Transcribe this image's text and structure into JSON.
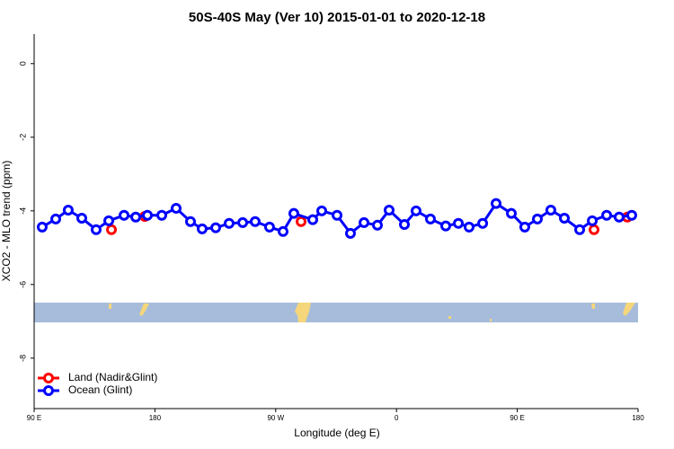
{
  "chart_data": {
    "type": "line",
    "title": "50S-40S May (Ver 10)   2015-01-01 to 2020-12-18",
    "x_label": "Longitude (deg E)",
    "y_label": "XCO2 - MLO trend (ppm)",
    "xlim": [
      90,
      540
    ],
    "ylim": [
      -9.37,
      0.8
    ],
    "xticks": [
      {
        "value": 90,
        "label": "90 E"
      },
      {
        "value": 180,
        "label": "180"
      },
      {
        "value": 270,
        "label": "90 W"
      },
      {
        "value": 360,
        "label": "0"
      },
      {
        "value": 450,
        "label": "90 E"
      },
      {
        "value": 540,
        "label": "180"
      }
    ],
    "yticks": [
      0,
      -2,
      -4,
      -6,
      -8
    ],
    "legend": "bottom-left",
    "series": [
      {
        "name": "Land (Nadir&Glint)",
        "color": "#ff0000",
        "connect": false,
        "x": [
          147.6,
          172.4,
          288.9,
          507.2,
          532.0
        ],
        "values": [
          -4.51,
          -4.15,
          -4.29,
          -4.51,
          -4.17
        ]
      },
      {
        "name": "Ocean (Glint)",
        "color": "#0000ff",
        "connect": true,
        "x": [
          96.0,
          106.1,
          115.4,
          125.5,
          136.2,
          145.6,
          157.0,
          165.7,
          174.4,
          185.1,
          195.8,
          206.5,
          215.2,
          225.3,
          235.3,
          245.4,
          254.7,
          265.4,
          275.5,
          283.5,
          297.6,
          304.3,
          315.7,
          325.7,
          335.8,
          345.8,
          354.5,
          365.9,
          374.6,
          385.3,
          396.7,
          406.1,
          414.1,
          424.2,
          434.2,
          445.6,
          455.6,
          465.0,
          475.0,
          485.1,
          496.5,
          505.9,
          516.6,
          525.9,
          535.3
        ],
        "values": [
          -4.44,
          -4.22,
          -3.98,
          -4.2,
          -4.51,
          -4.27,
          -4.12,
          -4.17,
          -4.12,
          -4.12,
          -3.93,
          -4.29,
          -4.49,
          -4.46,
          -4.34,
          -4.32,
          -4.29,
          -4.44,
          -4.56,
          -4.07,
          -4.24,
          -4.0,
          -4.12,
          -4.61,
          -4.32,
          -4.39,
          -3.98,
          -4.37,
          -4.0,
          -4.22,
          -4.41,
          -4.34,
          -4.44,
          -4.34,
          -3.8,
          -4.07,
          -4.44,
          -4.22,
          -3.98,
          -4.2,
          -4.51,
          -4.27,
          -4.12,
          -4.17,
          -4.12
        ]
      }
    ]
  }
}
